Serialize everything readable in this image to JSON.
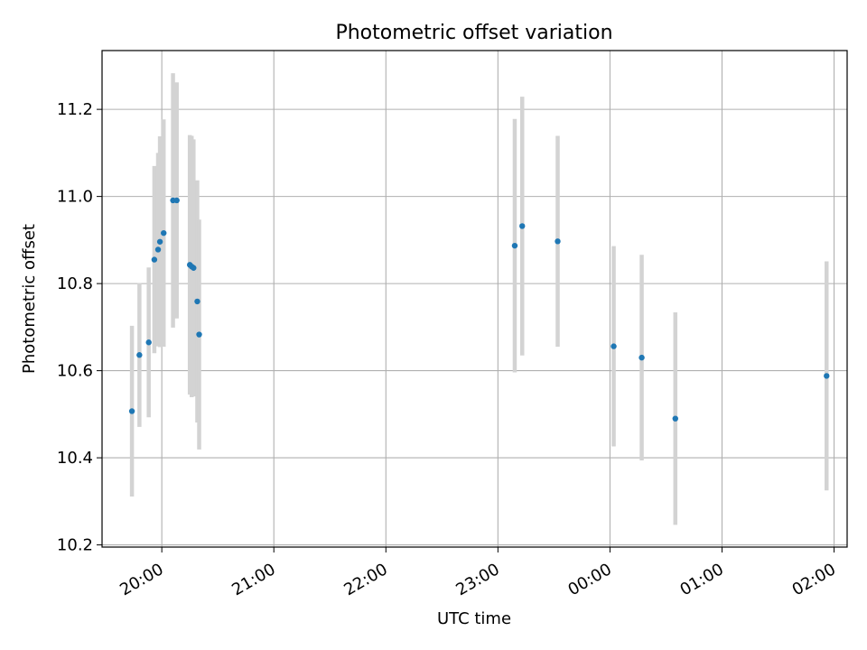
{
  "chart_data": {
    "type": "scatter",
    "title": "Photometric offset variation",
    "xlabel": "UTC time",
    "ylabel": "Photometric offset",
    "xlim": [
      "19:28",
      "02:07"
    ],
    "ylim": [
      10.195,
      11.335
    ],
    "x_ticks": [
      "20:00",
      "21:00",
      "22:00",
      "23:00",
      "00:00",
      "01:00",
      "02:00"
    ],
    "y_ticks": [
      "10.2",
      "10.4",
      "10.6",
      "10.8",
      "11.0",
      "11.2"
    ],
    "grid": true,
    "errorbar_color": "#d3d3d3",
    "marker_color": "#1f77b4",
    "series": [
      {
        "points": [
          {
            "x": "19:44",
            "y": 10.507,
            "err": 0.196
          },
          {
            "x": "19:48",
            "y": 10.636,
            "err": 0.165
          },
          {
            "x": "19:53",
            "y": 10.665,
            "err": 0.172
          },
          {
            "x": "19:56",
            "y": 10.855,
            "err": 0.215
          },
          {
            "x": "19:58",
            "y": 10.878,
            "err": 0.222
          },
          {
            "x": "19:59",
            "y": 10.896,
            "err": 0.242
          },
          {
            "x": "20:01",
            "y": 10.916,
            "err": 0.261
          },
          {
            "x": "20:06",
            "y": 10.991,
            "err": 0.292
          },
          {
            "x": "20:08",
            "y": 10.991,
            "err": 0.271
          },
          {
            "x": "20:15",
            "y": 10.843,
            "err": 0.298
          },
          {
            "x": "20:16",
            "y": 10.839,
            "err": 0.3
          },
          {
            "x": "20:17",
            "y": 10.836,
            "err": 0.295
          },
          {
            "x": "20:19",
            "y": 10.759,
            "err": 0.278
          },
          {
            "x": "20:20",
            "y": 10.683,
            "err": 0.264
          },
          {
            "x": "23:09",
            "y": 10.887,
            "err": 0.291
          },
          {
            "x": "23:13",
            "y": 10.932,
            "err": 0.297
          },
          {
            "x": "23:32",
            "y": 10.897,
            "err": 0.242
          },
          {
            "x": "00:02",
            "y": 10.656,
            "err": 0.23
          },
          {
            "x": "00:17",
            "y": 10.63,
            "err": 0.236
          },
          {
            "x": "00:35",
            "y": 10.49,
            "err": 0.244
          },
          {
            "x": "01:56",
            "y": 10.588,
            "err": 0.263
          }
        ]
      }
    ]
  }
}
